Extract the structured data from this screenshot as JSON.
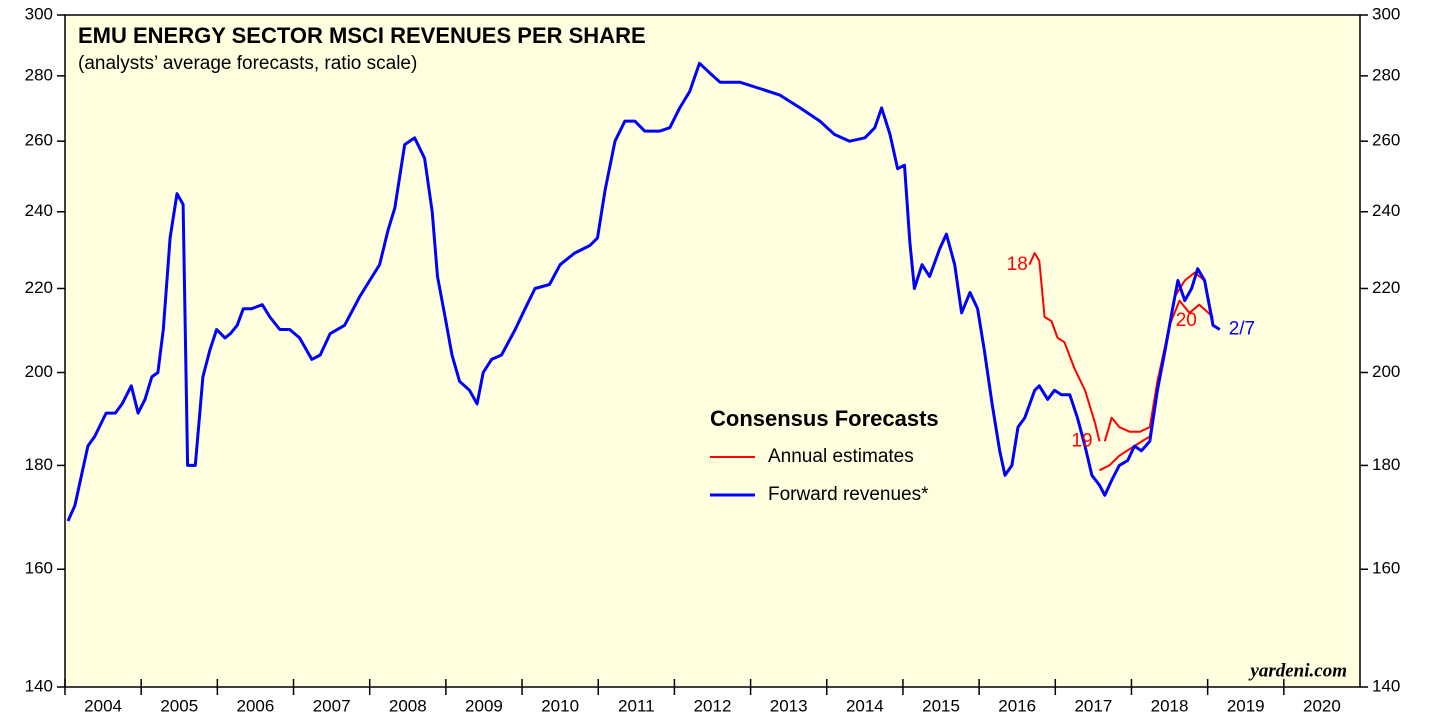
{
  "chart_data": {
    "type": "line",
    "title": "EMU ENERGY SECTOR MSCI REVENUES PER SHARE",
    "subtitle": "(analysts’ average forecasts, ratio scale)",
    "legend_title": "Consensus Forecasts",
    "credit": "yardeni.com",
    "log_scale": true,
    "xlim": [
      2004,
      2021
    ],
    "xticks": [
      2004,
      2005,
      2006,
      2007,
      2008,
      2009,
      2010,
      2011,
      2012,
      2013,
      2014,
      2015,
      2016,
      2017,
      2018,
      2019,
      2020
    ],
    "ylim": [
      140,
      300
    ],
    "yticks": [
      140,
      160,
      180,
      200,
      220,
      240,
      260,
      280,
      300
    ],
    "series": [
      {
        "name": "Annual estimates",
        "color": "#ff0000",
        "x": [
          2016.66,
          2016.73,
          2016.79,
          2016.86,
          2016.95,
          2017.03,
          2017.12,
          2017.25,
          2017.39,
          2017.52,
          2017.58,
          null,
          2017.65,
          2017.74,
          2017.84,
          2017.98,
          2018.11,
          2018.24,
          2018.34,
          2018.44,
          2018.57,
          2018.7,
          2018.83,
          2018.96,
          2019.07,
          null,
          2017.58,
          2017.71,
          2017.84,
          2018.04,
          2018.24,
          2018.37,
          2018.5,
          2018.63,
          2018.76,
          2018.89,
          2019.07
        ],
        "values": [
          226,
          229,
          227,
          213,
          212,
          208,
          207,
          201,
          196,
          189,
          185,
          null,
          185,
          190,
          188,
          187,
          187,
          188,
          198,
          206,
          218,
          222,
          224,
          222,
          212,
          null,
          179,
          180,
          182,
          184,
          186,
          200,
          211,
          217,
          214,
          216,
          213
        ]
      },
      {
        "name": "Forward revenues*",
        "color": "#0000ff",
        "x": [
          2004.04,
          2004.13,
          2004.3,
          2004.39,
          2004.54,
          2004.66,
          2004.75,
          2004.87,
          2004.96,
          2005.05,
          2005.14,
          2005.22,
          2005.29,
          2005.38,
          2005.47,
          2005.55,
          2005.61,
          2005.71,
          2005.81,
          2005.9,
          2005.99,
          2006.1,
          2006.17,
          2006.26,
          2006.34,
          2006.45,
          2006.59,
          2006.69,
          2006.82,
          2006.95,
          2007.08,
          2007.24,
          2007.35,
          2007.48,
          2007.67,
          2007.87,
          2008.0,
          2008.13,
          2008.24,
          2008.33,
          2008.46,
          2008.59,
          2008.72,
          2008.82,
          2008.89,
          2008.99,
          2009.08,
          2009.18,
          2009.31,
          2009.41,
          2009.49,
          2009.6,
          2009.73,
          2009.91,
          2010.04,
          2010.17,
          2010.36,
          2010.5,
          2010.69,
          2010.89,
          2010.99,
          2011.09,
          2011.22,
          2011.35,
          2011.48,
          2011.61,
          2011.81,
          2011.94,
          2012.07,
          2012.2,
          2012.33,
          2012.46,
          2012.6,
          2012.86,
          2013.12,
          2013.38,
          2013.65,
          2013.91,
          2014.1,
          2014.3,
          2014.5,
          2014.63,
          2014.72,
          2014.83,
          2014.93,
          2015.02,
          2015.09,
          2015.15,
          2015.25,
          2015.35,
          2015.48,
          2015.57,
          2015.68,
          2015.77,
          2015.88,
          2015.98,
          2016.07,
          2016.17,
          2016.27,
          2016.34,
          2016.43,
          2016.51,
          2016.6,
          2016.73,
          2016.79,
          2016.9,
          2016.99,
          2017.08,
          2017.19,
          2017.29,
          2017.39,
          2017.48,
          2017.58,
          2017.65,
          2017.74,
          2017.84,
          2017.95,
          2018.04,
          2018.13,
          2018.24,
          2018.34,
          2018.44,
          2018.53,
          2018.61,
          2018.7,
          2018.79,
          2018.87,
          2018.96,
          2019.07,
          2019.16
        ],
        "values": [
          169,
          172,
          184,
          186,
          191,
          191,
          193,
          197,
          191,
          194,
          199,
          200,
          210,
          233,
          245,
          242,
          180,
          180,
          199,
          205,
          210,
          208,
          209,
          211,
          215,
          215,
          216,
          213,
          210,
          210,
          208,
          203,
          204,
          209,
          211,
          218,
          222,
          226,
          235,
          241,
          259,
          261,
          255,
          240,
          223,
          213,
          204,
          198,
          196,
          193,
          200,
          203,
          204,
          210,
          215,
          220,
          221,
          226,
          229,
          231,
          233,
          246,
          260,
          266,
          266,
          263,
          263,
          264,
          270,
          275,
          284,
          281,
          278,
          278,
          276,
          274,
          270,
          266,
          262,
          260,
          261,
          264,
          270,
          262,
          252,
          253,
          232,
          220,
          226,
          223,
          230,
          234,
          226,
          214,
          219,
          215,
          205,
          193,
          183,
          178,
          180,
          188,
          190,
          196,
          197,
          194,
          196,
          195,
          195,
          190,
          184,
          178,
          176,
          174,
          177,
          180,
          181,
          184,
          183,
          185,
          196,
          205,
          214,
          222,
          217,
          220,
          225,
          222,
          211,
          210
        ]
      }
    ],
    "annotations": [
      {
        "text": "18",
        "x": 2016.5,
        "y": 226,
        "color": "#ff0000"
      },
      {
        "text": "19",
        "x": 2017.35,
        "y": 185,
        "color": "#ff0000"
      },
      {
        "text": "20",
        "x": 2018.72,
        "y": 212,
        "color": "#ff0000"
      },
      {
        "text": "2/7",
        "x": 2019.45,
        "y": 210,
        "color": "#0000ff"
      }
    ]
  }
}
